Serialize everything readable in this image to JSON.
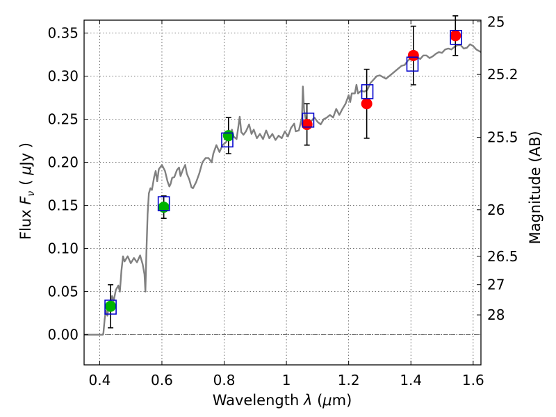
{
  "chart_data": {
    "type": "scatter",
    "xlabel": "Wavelength  λ (μm)",
    "ylabel": "Flux  F_ν  ( μJy )",
    "ylabel_parts": {
      "prefix": "Flux ",
      "var": "F",
      "sub": "ν",
      "unit_open": "( ",
      "unit_mu": "μ",
      "unit_rest": "Jy )"
    },
    "xlabel_parts": {
      "prefix": "Wavelength ",
      "var": "λ",
      "unit_open": " (",
      "unit_mu": "μ",
      "unit_rest": "m)"
    },
    "y2label": "Magnitude (AB)",
    "xlim": [
      0.35,
      1.625
    ],
    "ylim": [
      -0.035,
      0.365
    ],
    "grid": true,
    "x_ticks": [
      {
        "v": 0.4,
        "label": "0.4"
      },
      {
        "v": 0.6,
        "label": "0.6"
      },
      {
        "v": 0.8,
        "label": "0.8"
      },
      {
        "v": 1.0,
        "label": "1"
      },
      {
        "v": 1.2,
        "label": "1.2"
      },
      {
        "v": 1.4,
        "label": "1.4"
      },
      {
        "v": 1.6,
        "label": "1.6"
      }
    ],
    "y_ticks": [
      {
        "v": 0.0,
        "label": "0.00"
      },
      {
        "v": 0.05,
        "label": "0.05"
      },
      {
        "v": 0.1,
        "label": "0.10"
      },
      {
        "v": 0.15,
        "label": "0.15"
      },
      {
        "v": 0.2,
        "label": "0.20"
      },
      {
        "v": 0.25,
        "label": "0.25"
      },
      {
        "v": 0.3,
        "label": "0.30"
      },
      {
        "v": 0.35,
        "label": "0.35"
      }
    ],
    "y2_ticks": [
      {
        "label": "25",
        "flux": 0.363
      },
      {
        "label": "25.2",
        "flux": 0.302
      },
      {
        "label": "25.5",
        "flux": 0.229
      },
      {
        "label": "26",
        "flux": 0.145
      },
      {
        "label": "26.5",
        "flux": 0.091
      },
      {
        "label": "27",
        "flux": 0.058
      },
      {
        "label": "28",
        "flux": 0.023
      }
    ],
    "colors": {
      "model": "#808080",
      "model_box": "#0000cc",
      "obs_green": "#00b300",
      "obs_red": "#ff0000",
      "errorbar": "#000000",
      "zero_line": "#555555"
    },
    "observed": [
      {
        "x": 0.435,
        "y": 0.033,
        "err": 0.025,
        "color": "green"
      },
      {
        "x": 0.606,
        "y": 0.148,
        "err": 0.013,
        "color": "green"
      },
      {
        "x": 0.814,
        "y": 0.231,
        "err": 0.021,
        "color": "green"
      },
      {
        "x": 1.066,
        "y": 0.244,
        "err": 0.024,
        "color": "red"
      },
      {
        "x": 1.258,
        "y": 0.268,
        "err": 0.04,
        "color": "red"
      },
      {
        "x": 1.408,
        "y": 0.324,
        "err": 0.034,
        "color": "red"
      },
      {
        "x": 1.543,
        "y": 0.347,
        "err": 0.023,
        "color": "red"
      }
    ],
    "model_points": [
      {
        "x": 0.435,
        "y": 0.032
      },
      {
        "x": 0.606,
        "y": 0.152
      },
      {
        "x": 0.81,
        "y": 0.226
      },
      {
        "x": 1.07,
        "y": 0.249
      },
      {
        "x": 1.26,
        "y": 0.282
      },
      {
        "x": 1.405,
        "y": 0.314
      },
      {
        "x": 1.545,
        "y": 0.345
      }
    ],
    "model_spectrum": [
      [
        0.35,
        0.0
      ],
      [
        0.41,
        0.0
      ],
      [
        0.412,
        0.002
      ],
      [
        0.416,
        0.018
      ],
      [
        0.42,
        0.028
      ],
      [
        0.425,
        0.022
      ],
      [
        0.43,
        0.038
      ],
      [
        0.435,
        0.032
      ],
      [
        0.44,
        0.045
      ],
      [
        0.445,
        0.039
      ],
      [
        0.452,
        0.052
      ],
      [
        0.46,
        0.057
      ],
      [
        0.465,
        0.05
      ],
      [
        0.47,
        0.074
      ],
      [
        0.475,
        0.091
      ],
      [
        0.48,
        0.085
      ],
      [
        0.49,
        0.091
      ],
      [
        0.5,
        0.083
      ],
      [
        0.51,
        0.089
      ],
      [
        0.52,
        0.084
      ],
      [
        0.53,
        0.092
      ],
      [
        0.538,
        0.082
      ],
      [
        0.544,
        0.07
      ],
      [
        0.547,
        0.05
      ],
      [
        0.55,
        0.094
      ],
      [
        0.554,
        0.14
      ],
      [
        0.558,
        0.164
      ],
      [
        0.563,
        0.17
      ],
      [
        0.568,
        0.168
      ],
      [
        0.575,
        0.183
      ],
      [
        0.58,
        0.19
      ],
      [
        0.585,
        0.178
      ],
      [
        0.59,
        0.192
      ],
      [
        0.6,
        0.197
      ],
      [
        0.61,
        0.19
      ],
      [
        0.618,
        0.178
      ],
      [
        0.624,
        0.172
      ],
      [
        0.628,
        0.175
      ],
      [
        0.633,
        0.182
      ],
      [
        0.64,
        0.183
      ],
      [
        0.648,
        0.191
      ],
      [
        0.655,
        0.194
      ],
      [
        0.66,
        0.184
      ],
      [
        0.668,
        0.192
      ],
      [
        0.675,
        0.197
      ],
      [
        0.68,
        0.187
      ],
      [
        0.688,
        0.18
      ],
      [
        0.695,
        0.171
      ],
      [
        0.7,
        0.17
      ],
      [
        0.71,
        0.177
      ],
      [
        0.72,
        0.187
      ],
      [
        0.73,
        0.2
      ],
      [
        0.74,
        0.205
      ],
      [
        0.75,
        0.205
      ],
      [
        0.76,
        0.2
      ],
      [
        0.765,
        0.21
      ],
      [
        0.775,
        0.22
      ],
      [
        0.785,
        0.212
      ],
      [
        0.795,
        0.22
      ],
      [
        0.805,
        0.223
      ],
      [
        0.815,
        0.228
      ],
      [
        0.825,
        0.238
      ],
      [
        0.83,
        0.23
      ],
      [
        0.84,
        0.227
      ],
      [
        0.845,
        0.24
      ],
      [
        0.85,
        0.253
      ],
      [
        0.855,
        0.235
      ],
      [
        0.862,
        0.232
      ],
      [
        0.87,
        0.236
      ],
      [
        0.88,
        0.244
      ],
      [
        0.888,
        0.233
      ],
      [
        0.895,
        0.238
      ],
      [
        0.905,
        0.228
      ],
      [
        0.915,
        0.233
      ],
      [
        0.925,
        0.227
      ],
      [
        0.935,
        0.237
      ],
      [
        0.945,
        0.228
      ],
      [
        0.955,
        0.233
      ],
      [
        0.965,
        0.226
      ],
      [
        0.975,
        0.231
      ],
      [
        0.985,
        0.228
      ],
      [
        0.995,
        0.236
      ],
      [
        1.005,
        0.23
      ],
      [
        1.015,
        0.24
      ],
      [
        1.025,
        0.245
      ],
      [
        1.03,
        0.236
      ],
      [
        1.04,
        0.237
      ],
      [
        1.045,
        0.245
      ],
      [
        1.05,
        0.252
      ],
      [
        1.053,
        0.288
      ],
      [
        1.057,
        0.26
      ],
      [
        1.062,
        0.25
      ],
      [
        1.07,
        0.243
      ],
      [
        1.08,
        0.248
      ],
      [
        1.09,
        0.252
      ],
      [
        1.1,
        0.247
      ],
      [
        1.11,
        0.244
      ],
      [
        1.12,
        0.25
      ],
      [
        1.13,
        0.252
      ],
      [
        1.14,
        0.255
      ],
      [
        1.15,
        0.252
      ],
      [
        1.16,
        0.262
      ],
      [
        1.17,
        0.255
      ],
      [
        1.18,
        0.262
      ],
      [
        1.19,
        0.268
      ],
      [
        1.2,
        0.278
      ],
      [
        1.205,
        0.27
      ],
      [
        1.21,
        0.28
      ],
      [
        1.22,
        0.28
      ],
      [
        1.225,
        0.29
      ],
      [
        1.23,
        0.28
      ],
      [
        1.24,
        0.283
      ],
      [
        1.25,
        0.282
      ],
      [
        1.26,
        0.284
      ],
      [
        1.27,
        0.292
      ],
      [
        1.28,
        0.296
      ],
      [
        1.29,
        0.3
      ],
      [
        1.3,
        0.301
      ],
      [
        1.31,
        0.299
      ],
      [
        1.32,
        0.297
      ],
      [
        1.33,
        0.3
      ],
      [
        1.34,
        0.303
      ],
      [
        1.35,
        0.306
      ],
      [
        1.36,
        0.309
      ],
      [
        1.37,
        0.312
      ],
      [
        1.38,
        0.313
      ],
      [
        1.39,
        0.318
      ],
      [
        1.4,
        0.321
      ],
      [
        1.41,
        0.32
      ],
      [
        1.42,
        0.322
      ],
      [
        1.43,
        0.32
      ],
      [
        1.44,
        0.324
      ],
      [
        1.45,
        0.324
      ],
      [
        1.46,
        0.321
      ],
      [
        1.47,
        0.323
      ],
      [
        1.48,
        0.326
      ],
      [
        1.49,
        0.328
      ],
      [
        1.5,
        0.327
      ],
      [
        1.51,
        0.331
      ],
      [
        1.52,
        0.332
      ],
      [
        1.53,
        0.331
      ],
      [
        1.54,
        0.334
      ],
      [
        1.55,
        0.336
      ],
      [
        1.56,
        0.336
      ],
      [
        1.57,
        0.332
      ],
      [
        1.58,
        0.333
      ],
      [
        1.59,
        0.337
      ],
      [
        1.6,
        0.335
      ],
      [
        1.61,
        0.331
      ],
      [
        1.625,
        0.328
      ]
    ]
  }
}
